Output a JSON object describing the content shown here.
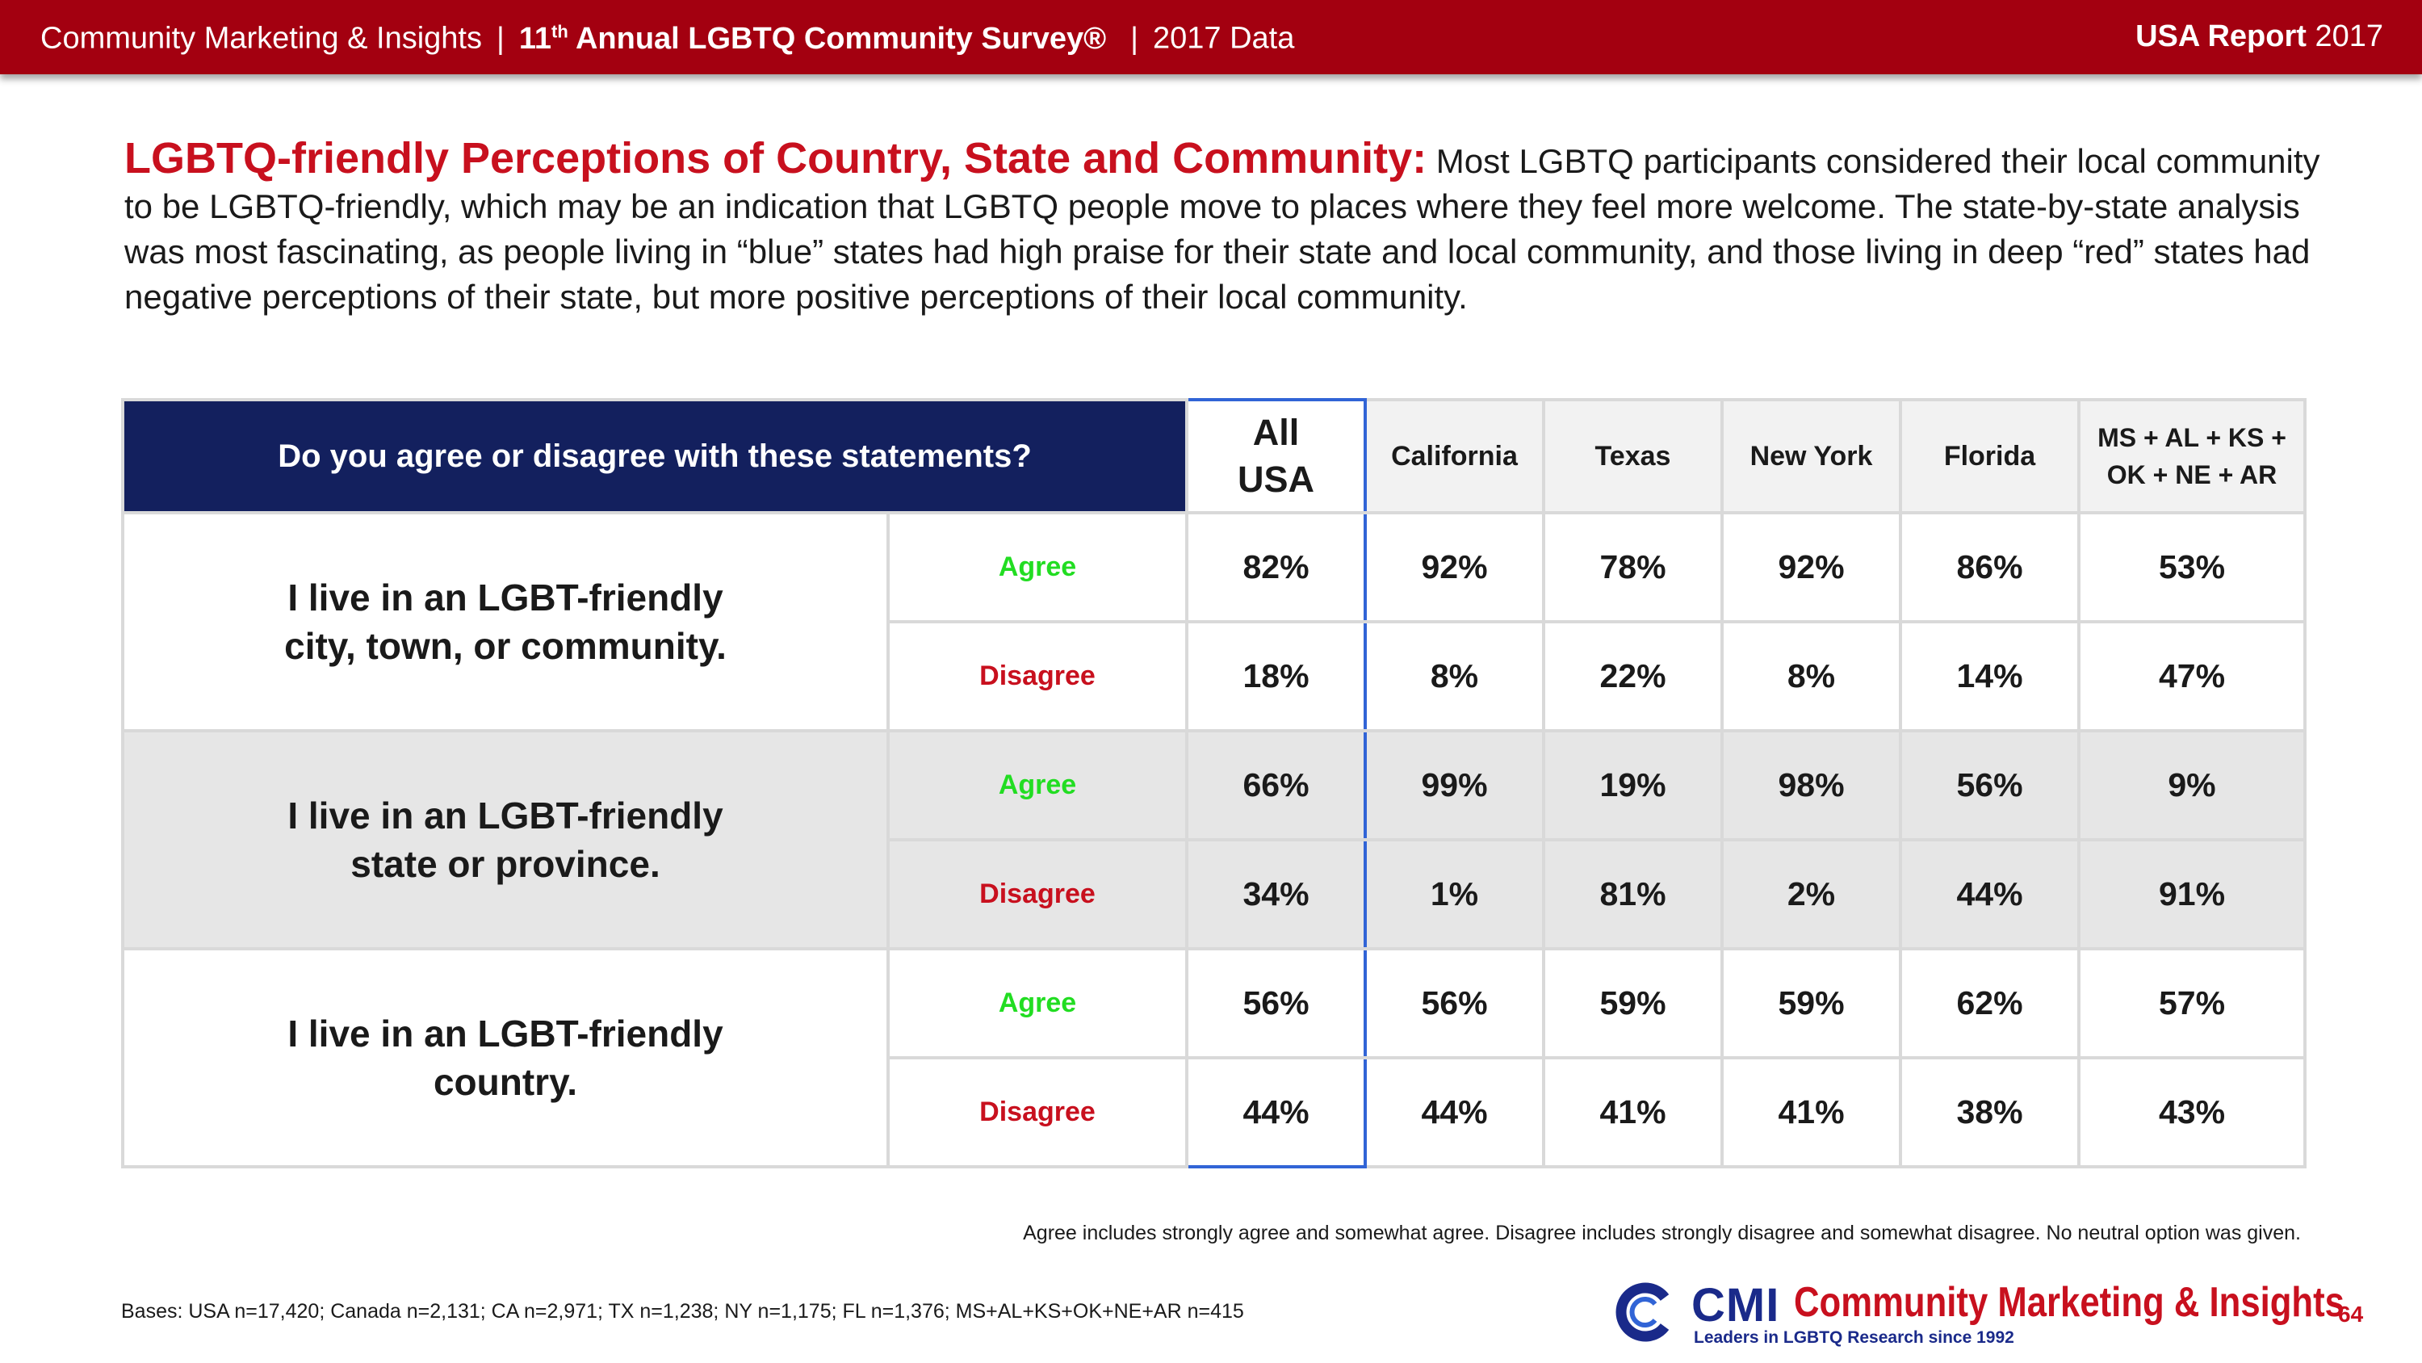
{
  "header": {
    "org": "Community Marketing & Insights",
    "survey_prefix": "11",
    "survey_sup": "th",
    "survey_title": "Annual LGBTQ Community Survey®",
    "data_year": "2017 Data",
    "report_bold": "USA Report",
    "report_year": "2017"
  },
  "intro": {
    "title": "LGBTQ-friendly Perceptions of Country, State and Community:",
    "body": "Most LGBTQ participants considered their local community to be LGBTQ-friendly, which may be an indication that LGBTQ people move to places where they feel more welcome. The state-by-state analysis was most fascinating, as people living in “blue” states had high praise for their state and local community, and those living in deep “red” states had negative perceptions of their state, but more positive perceptions of their local community."
  },
  "table": {
    "question": "Do you agree or disagree with these statements?",
    "columns": [
      "All USA",
      "California",
      "Texas",
      "New York",
      "Florida",
      "MS + AL + KS + OK + NE + AR"
    ],
    "agree_label": "Agree",
    "disagree_label": "Disagree",
    "rows": [
      {
        "statement": "I live in an LGBT-friendly city, town, or community.",
        "agree": [
          "82%",
          "92%",
          "78%",
          "92%",
          "86%",
          "53%"
        ],
        "disagree": [
          "18%",
          "8%",
          "22%",
          "8%",
          "14%",
          "47%"
        ]
      },
      {
        "statement": "I live in an LGBT-friendly state or province.",
        "agree": [
          "66%",
          "99%",
          "19%",
          "98%",
          "56%",
          "9%"
        ],
        "disagree": [
          "34%",
          "1%",
          "81%",
          "2%",
          "44%",
          "91%"
        ]
      },
      {
        "statement": "I live in an LGBT-friendly country.",
        "agree": [
          "56%",
          "56%",
          "59%",
          "59%",
          "62%",
          "57%"
        ],
        "disagree": [
          "44%",
          "44%",
          "41%",
          "41%",
          "38%",
          "43%"
        ]
      }
    ]
  },
  "note": "Agree includes strongly agree and somewhat agree. Disagree includes strongly disagree and somewhat disagree.  No neutral option was given.",
  "bases": "Bases: USA n=17,420; Canada n=2,131; CA n=2,971; TX n=1,238; NY n=1,175; FL n=1,376; MS+AL+KS+OK+NE+AR n=415",
  "footer": {
    "logo_abbr": "CMI",
    "logo_name": "Community Marketing & Insights",
    "logo_tagline": "Leaders in LGBTQ Research since 1992",
    "page_number": "64"
  },
  "colors": {
    "header_red": "#a30010",
    "title_red": "#c8101e",
    "navy": "#13205e",
    "agree_green": "#22dd22",
    "highlight_blue": "#3164d6"
  }
}
